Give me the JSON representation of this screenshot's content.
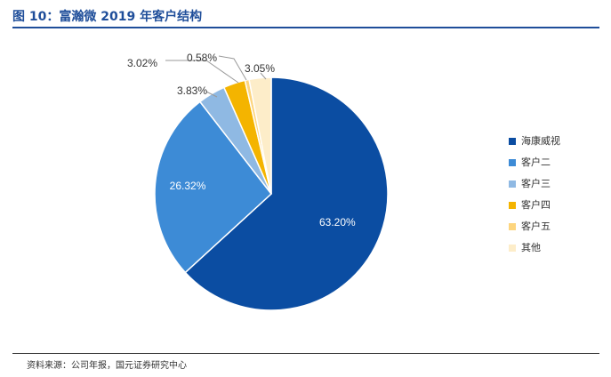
{
  "figure_title": "图 10：富瀚微 2019 年客户结构",
  "source_note": "资料来源：公司年报，国元证券研究中心",
  "chart_data": {
    "type": "pie",
    "title": "图 10：富瀚微 2019 年客户结构",
    "slices": [
      {
        "name": "海康威视",
        "value": 63.2,
        "label": "63.20%",
        "color": "#0b4da2"
      },
      {
        "name": "客户二",
        "value": 26.32,
        "label": "26.32%",
        "color": "#3d8bd6"
      },
      {
        "name": "客户三",
        "value": 3.83,
        "label": "3.83%",
        "color": "#8fb9e3"
      },
      {
        "name": "客户四",
        "value": 3.02,
        "label": "3.02%",
        "color": "#f4b400"
      },
      {
        "name": "客户五",
        "value": 0.58,
        "label": "0.58%",
        "color": "#fdd57e"
      },
      {
        "name": "其他",
        "value": 3.05,
        "label": "3.05%",
        "color": "#fdedc9"
      }
    ],
    "legend_position": "right"
  }
}
